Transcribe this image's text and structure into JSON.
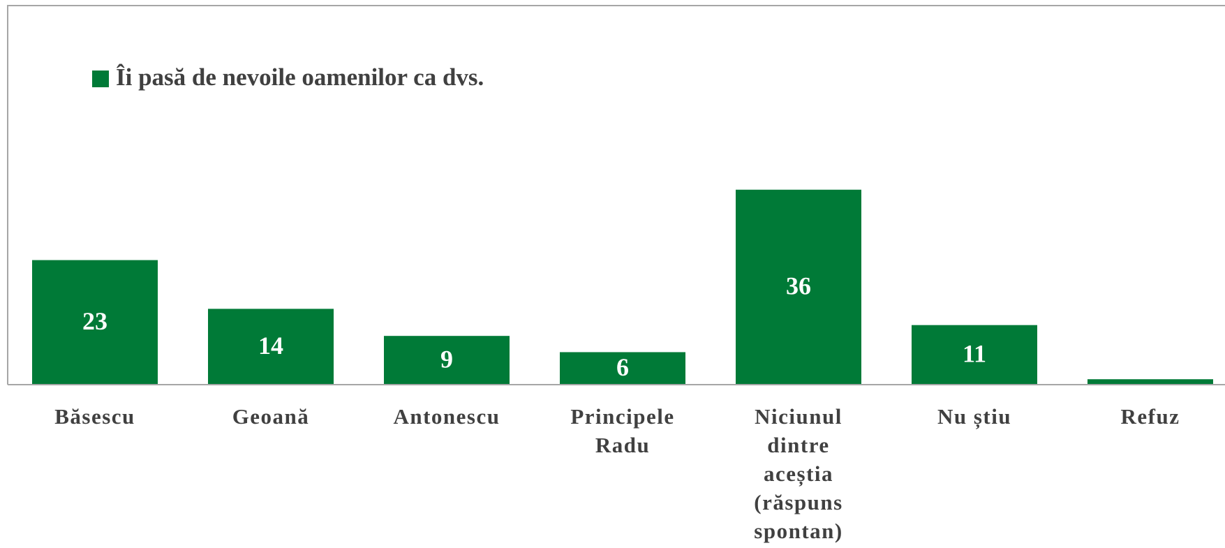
{
  "chart_data": {
    "type": "bar",
    "categories": [
      "Băsescu",
      "Geoană",
      "Antonescu",
      "Principele Radu",
      "Niciunul dintre aceștia (răspuns spontan)",
      "Nu știu",
      "Refuz"
    ],
    "series": [
      {
        "name": "Îi pasă de nevoile oamenilor ca dvs.",
        "color": "#007a37",
        "values": [
          23,
          14,
          9,
          6,
          36,
          11,
          1
        ],
        "value_labels": [
          "23",
          "14",
          "9",
          "6",
          "36",
          "11",
          null
        ]
      }
    ],
    "ylim": [
      0,
      70
    ]
  }
}
